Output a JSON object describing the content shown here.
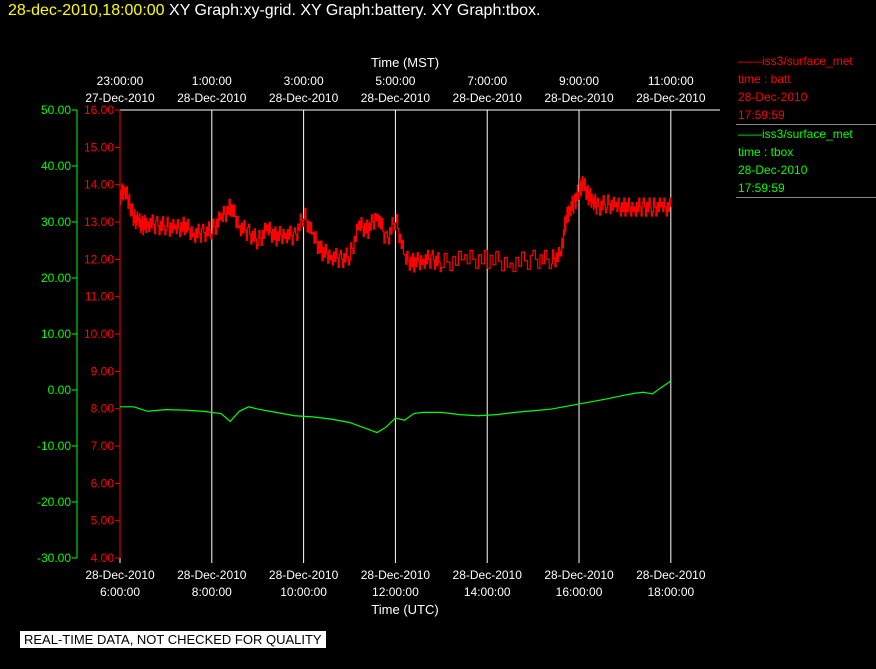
{
  "header": {
    "timestamp": "28-dec-2010,18:00:00",
    "graphs": "XY Graph:xy-grid.  XY Graph:battery.  XY Graph:tbox."
  },
  "legend": [
    {
      "line1": "iss3/surface_met",
      "line2": "time : batt",
      "line3": "28-Dec-2010",
      "line4": "17:59:59",
      "color": "#ff0000"
    },
    {
      "line1": "iss3/surface_met",
      "line2": "time : tbox",
      "line3": "28-Dec-2010",
      "line4": "17:59:59",
      "color": "#00ff00"
    }
  ],
  "footer": "REAL-TIME DATA, NOT CHECKED FOR QUALITY",
  "chart_data": {
    "type": "line",
    "title": "",
    "x_top_label": "Time (MST)",
    "x_bottom_label": "Time (UTC)",
    "x_range_utc_hours": [
      6,
      18.2
    ],
    "x_ticks_bottom": [
      {
        "h": 6,
        "date": "28-Dec-2010",
        "time": "6:00:00"
      },
      {
        "h": 8,
        "date": "28-Dec-2010",
        "time": "8:00:00"
      },
      {
        "h": 10,
        "date": "28-Dec-2010",
        "time": "10:00:00"
      },
      {
        "h": 12,
        "date": "28-Dec-2010",
        "time": "12:00:00"
      },
      {
        "h": 14,
        "date": "28-Dec-2010",
        "time": "14:00:00"
      },
      {
        "h": 16,
        "date": "28-Dec-2010",
        "time": "16:00:00"
      },
      {
        "h": 18,
        "date": "28-Dec-2010",
        "time": "18:00:00"
      }
    ],
    "x_ticks_top": [
      {
        "h": 6,
        "time": "23:00:00",
        "date": "27-Dec-2010"
      },
      {
        "h": 8,
        "time": "1:00:00",
        "date": "28-Dec-2010"
      },
      {
        "h": 10,
        "time": "3:00:00",
        "date": "28-Dec-2010"
      },
      {
        "h": 12,
        "time": "5:00:00",
        "date": "28-Dec-2010"
      },
      {
        "h": 14,
        "time": "7:00:00",
        "date": "28-Dec-2010"
      },
      {
        "h": 16,
        "time": "9:00:00",
        "date": "28-Dec-2010"
      },
      {
        "h": 18,
        "time": "11:00:00",
        "date": "28-Dec-2010"
      }
    ],
    "y_batt": {
      "range": [
        4,
        16
      ],
      "ticks": [
        "4.00",
        "5.00",
        "6.00",
        "7.00",
        "8.00",
        "9.00",
        "10.00",
        "11.00",
        "12.00",
        "13.00",
        "14.00",
        "15.00",
        "16.00"
      ],
      "color": "#ff0000"
    },
    "y_tbox": {
      "range": [
        -30,
        50
      ],
      "ticks": [
        "-30.00",
        "-20.00",
        "-10.00",
        "0.00",
        "10.00",
        "20.00",
        "30.00",
        "40.00",
        "50.00"
      ],
      "color": "#00ff00"
    },
    "grid": "vertical",
    "series": [
      {
        "name": "time : batt",
        "axis": "batt",
        "color": "#ff0000",
        "x": [
          6.0,
          6.1,
          6.2,
          6.3,
          6.4,
          6.5,
          6.6,
          6.8,
          7.0,
          7.2,
          7.4,
          7.6,
          7.8,
          8.0,
          8.2,
          8.4,
          8.6,
          8.8,
          9.0,
          9.2,
          9.4,
          9.6,
          9.8,
          10.0,
          10.2,
          10.4,
          10.6,
          10.8,
          11.0,
          11.2,
          11.4,
          11.6,
          11.8,
          12.0,
          12.2,
          12.4,
          12.6,
          12.8,
          13.0,
          13.5,
          14.0,
          14.5,
          15.0,
          15.4,
          15.6,
          15.7,
          15.8,
          15.9,
          16.0,
          16.1,
          16.2,
          16.3,
          16.4,
          16.6,
          16.8,
          17.0,
          17.2,
          17.4,
          17.6,
          17.8,
          18.0
        ],
        "y": [
          13.7,
          13.9,
          13.5,
          13.1,
          13.0,
          12.9,
          13.0,
          12.9,
          12.9,
          12.8,
          12.9,
          12.7,
          12.7,
          12.8,
          13.1,
          13.4,
          12.9,
          12.7,
          12.5,
          12.8,
          12.6,
          12.7,
          12.6,
          13.2,
          12.6,
          12.2,
          12.1,
          12.0,
          12.1,
          12.9,
          12.8,
          13.2,
          12.5,
          13.1,
          12.0,
          11.9,
          12.0,
          12.0,
          11.9,
          12.0,
          12.0,
          11.9,
          12.0,
          12.0,
          12.1,
          13.0,
          13.4,
          13.5,
          13.9,
          14.0,
          13.7,
          13.6,
          13.4,
          13.5,
          13.4,
          13.4,
          13.4,
          13.4,
          13.4,
          13.4,
          13.4
        ]
      },
      {
        "name": "time : tbox",
        "axis": "tbox",
        "color": "#00ff00",
        "x": [
          6.0,
          6.3,
          6.6,
          7.0,
          7.4,
          7.8,
          8.2,
          8.4,
          8.6,
          8.8,
          9.0,
          9.4,
          9.8,
          10.2,
          10.6,
          11.0,
          11.4,
          11.6,
          11.8,
          12.0,
          12.2,
          12.4,
          12.6,
          13.0,
          13.4,
          13.8,
          14.2,
          14.6,
          15.0,
          15.4,
          15.8,
          16.2,
          16.6,
          17.0,
          17.2,
          17.4,
          17.6,
          17.8,
          18.0
        ],
        "y": [
          -3.0,
          -3.0,
          -3.8,
          -3.5,
          -3.6,
          -3.8,
          -4.2,
          -5.6,
          -3.8,
          -3.0,
          -3.4,
          -4.0,
          -4.6,
          -4.8,
          -5.2,
          -5.8,
          -7.0,
          -7.6,
          -6.6,
          -5.0,
          -5.4,
          -4.2,
          -4.0,
          -4.0,
          -4.4,
          -4.6,
          -4.4,
          -4.0,
          -3.7,
          -3.4,
          -2.8,
          -2.2,
          -1.6,
          -0.9,
          -0.6,
          -0.4,
          -0.7,
          0.5,
          1.6
        ]
      }
    ]
  }
}
